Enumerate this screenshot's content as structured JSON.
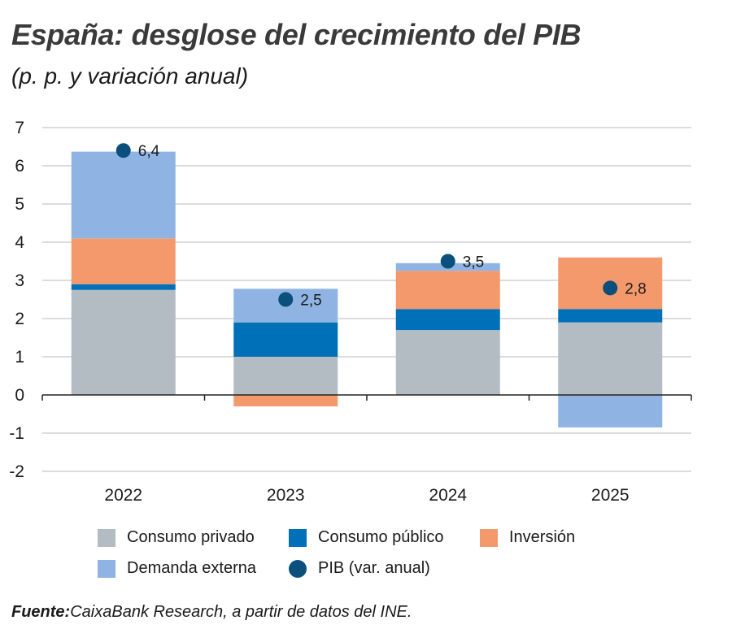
{
  "header": {
    "title": "España: desglose del crecimiento del PIB",
    "subtitle": "(p. p. y variación anual)"
  },
  "source": {
    "label": "Fuente:",
    "text": "CaixaBank Research, a partir de datos del INE."
  },
  "colors": {
    "consumo_privado": "#b2bcc2",
    "consumo_publico": "#0070b8",
    "inversion": "#f3996c",
    "demanda_externa": "#8fb4e3",
    "pib": "#0b4f7c",
    "grid": "#b8b8b8",
    "axis": "#222222"
  },
  "legend": [
    {
      "name": "Consumo privado",
      "color": "#b2bcc2",
      "shape": "square"
    },
    {
      "name": "Consumo público",
      "color": "#0070b8",
      "shape": "square"
    },
    {
      "name": "Inversión",
      "color": "#f3996c",
      "shape": "square"
    },
    {
      "name": "Demanda externa",
      "color": "#8fb4e3",
      "shape": "square"
    },
    {
      "name": "PIB (var. anual)",
      "color": "#0b4f7c",
      "shape": "circle"
    }
  ],
  "chart_data": {
    "type": "bar",
    "stacked": true,
    "title": "España: desglose del crecimiento del PIB",
    "subtitle": "(p. p. y variación anual)",
    "categories": [
      "2022",
      "2023",
      "2024",
      "2025"
    ],
    "ylim": [
      -2,
      7
    ],
    "yticks": [
      7,
      6,
      5,
      4,
      3,
      2,
      1,
      0,
      -1,
      -2
    ],
    "ytick_labels": [
      "7",
      "6",
      "5",
      "4",
      "3",
      "2",
      "1",
      "0",
      "-1",
      "-2"
    ],
    "grid": true,
    "legend_position": "bottom",
    "series": [
      {
        "name": "Consumo privado",
        "color": "#b2bcc2",
        "values": [
          2.75,
          1.0,
          1.7,
          1.9
        ]
      },
      {
        "name": "Consumo público",
        "color": "#0070b8",
        "values": [
          0.15,
          0.9,
          0.55,
          0.35
        ]
      },
      {
        "name": "Inversión",
        "color": "#f3996c",
        "values": [
          1.2,
          -0.3,
          1.0,
          1.35
        ]
      },
      {
        "name": "Demanda externa",
        "color": "#8fb4e3",
        "values": [
          2.27,
          0.88,
          0.2,
          -0.85
        ]
      }
    ],
    "pib": {
      "name": "PIB (var. anual)",
      "color": "#0b4f7c",
      "values": [
        6.4,
        2.5,
        3.5,
        2.8
      ],
      "labels": [
        "6,4",
        "2,5",
        "3,5",
        "2,8"
      ]
    }
  }
}
